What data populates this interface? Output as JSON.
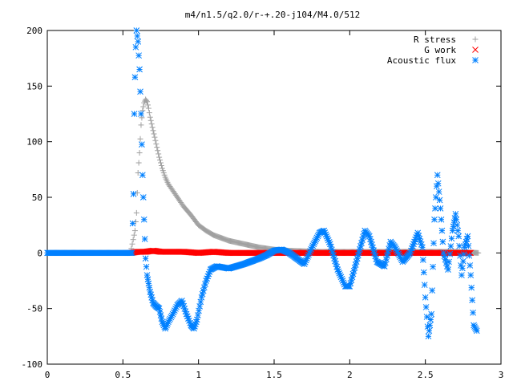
{
  "chart_data": {
    "type": "scatter",
    "title": "m4/n1.5/q2.0/r-+.20-j104/M4.0/512",
    "xlabel": "",
    "ylabel": "",
    "xlim": [
      0,
      3
    ],
    "ylim": [
      -100,
      200
    ],
    "x_ticks": [
      "0",
      "0.5",
      "1",
      "1.5",
      "2",
      "2.5",
      "3"
    ],
    "y_ticks": [
      "-100",
      "-50",
      "0",
      "50",
      "100",
      "150",
      "200"
    ],
    "grid": false,
    "legend_position": "top-right",
    "series": [
      {
        "name": "R stress",
        "color": "#a0a0a0",
        "marker": "plus",
        "points": [
          [
            0.0,
            0
          ],
          [
            0.3,
            0
          ],
          [
            0.55,
            0
          ],
          [
            0.58,
            20
          ],
          [
            0.59,
            36
          ],
          [
            0.6,
            72
          ],
          [
            0.61,
            90
          ],
          [
            0.62,
            115
          ],
          [
            0.63,
            128
          ],
          [
            0.64,
            135
          ],
          [
            0.65,
            138
          ],
          [
            0.66,
            136
          ],
          [
            0.67,
            130
          ],
          [
            0.68,
            122
          ],
          [
            0.7,
            110
          ],
          [
            0.72,
            98
          ],
          [
            0.74,
            86
          ],
          [
            0.76,
            76
          ],
          [
            0.78,
            68
          ],
          [
            0.8,
            62
          ],
          [
            0.85,
            52
          ],
          [
            0.9,
            42
          ],
          [
            0.95,
            34
          ],
          [
            1.0,
            25
          ],
          [
            1.05,
            20
          ],
          [
            1.1,
            16
          ],
          [
            1.2,
            11
          ],
          [
            1.3,
            8
          ],
          [
            1.4,
            5
          ],
          [
            1.5,
            3
          ],
          [
            1.6,
            2
          ],
          [
            1.8,
            1
          ],
          [
            2.0,
            1
          ],
          [
            2.3,
            1
          ],
          [
            2.5,
            1
          ],
          [
            2.7,
            1
          ],
          [
            2.85,
            0
          ]
        ]
      },
      {
        "name": "G work",
        "color": "#ff0000",
        "marker": "cross",
        "points": [
          [
            0.55,
            0
          ],
          [
            0.6,
            1
          ],
          [
            0.65,
            1
          ],
          [
            0.7,
            2
          ],
          [
            0.75,
            1
          ],
          [
            0.8,
            1
          ],
          [
            0.9,
            1
          ],
          [
            1.0,
            0
          ],
          [
            1.1,
            1
          ],
          [
            1.2,
            0
          ],
          [
            1.3,
            0
          ],
          [
            1.4,
            0
          ],
          [
            1.5,
            0
          ],
          [
            1.6,
            0
          ],
          [
            1.7,
            0
          ],
          [
            1.8,
            0
          ],
          [
            1.9,
            0
          ],
          [
            2.0,
            0
          ],
          [
            2.1,
            0
          ],
          [
            2.2,
            0
          ],
          [
            2.3,
            0
          ],
          [
            2.4,
            0
          ],
          [
            2.5,
            0
          ],
          [
            2.6,
            0
          ],
          [
            2.7,
            0
          ],
          [
            2.8,
            0
          ]
        ]
      },
      {
        "name": "Acoustic flux",
        "color": "#0080ff",
        "marker": "star",
        "points": [
          [
            0.0,
            0
          ],
          [
            0.1,
            0
          ],
          [
            0.2,
            0
          ],
          [
            0.3,
            0
          ],
          [
            0.4,
            0
          ],
          [
            0.5,
            0
          ],
          [
            0.56,
            0
          ],
          [
            0.57,
            53
          ],
          [
            0.575,
            125
          ],
          [
            0.58,
            158
          ],
          [
            0.585,
            185
          ],
          [
            0.59,
            200
          ],
          [
            0.6,
            190
          ],
          [
            0.61,
            165
          ],
          [
            0.62,
            125
          ],
          [
            0.63,
            70
          ],
          [
            0.64,
            30
          ],
          [
            0.65,
            -5
          ],
          [
            0.66,
            -20
          ],
          [
            0.68,
            -35
          ],
          [
            0.7,
            -45
          ],
          [
            0.72,
            -48
          ],
          [
            0.74,
            -50
          ],
          [
            0.76,
            -62
          ],
          [
            0.78,
            -68
          ],
          [
            0.8,
            -62
          ],
          [
            0.83,
            -55
          ],
          [
            0.86,
            -47
          ],
          [
            0.89,
            -43
          ],
          [
            0.92,
            -55
          ],
          [
            0.95,
            -65
          ],
          [
            0.97,
            -68
          ],
          [
            0.99,
            -60
          ],
          [
            1.02,
            -40
          ],
          [
            1.05,
            -25
          ],
          [
            1.08,
            -15
          ],
          [
            1.12,
            -12
          ],
          [
            1.2,
            -14
          ],
          [
            1.3,
            -10
          ],
          [
            1.4,
            -5
          ],
          [
            1.45,
            -2
          ],
          [
            1.5,
            2
          ],
          [
            1.55,
            3
          ],
          [
            1.6,
            0
          ],
          [
            1.65,
            -5
          ],
          [
            1.7,
            -10
          ],
          [
            1.75,
            5
          ],
          [
            1.8,
            18
          ],
          [
            1.83,
            20
          ],
          [
            1.87,
            8
          ],
          [
            1.92,
            -15
          ],
          [
            1.97,
            -30
          ],
          [
            2.0,
            -30
          ],
          [
            2.05,
            -5
          ],
          [
            2.1,
            20
          ],
          [
            2.13,
            15
          ],
          [
            2.18,
            -8
          ],
          [
            2.23,
            -12
          ],
          [
            2.27,
            10
          ],
          [
            2.3,
            5
          ],
          [
            2.35,
            -8
          ],
          [
            2.4,
            0
          ],
          [
            2.45,
            18
          ],
          [
            2.48,
            5
          ],
          [
            2.5,
            -40
          ],
          [
            2.52,
            -75
          ],
          [
            2.54,
            -55
          ],
          [
            2.56,
            30
          ],
          [
            2.58,
            70
          ],
          [
            2.6,
            40
          ],
          [
            2.62,
            0
          ],
          [
            2.65,
            -15
          ],
          [
            2.68,
            20
          ],
          [
            2.7,
            35
          ],
          [
            2.72,
            15
          ],
          [
            2.74,
            -20
          ],
          [
            2.76,
            5
          ],
          [
            2.78,
            15
          ],
          [
            2.8,
            -20
          ],
          [
            2.82,
            -65
          ],
          [
            2.84,
            -70
          ]
        ]
      }
    ]
  }
}
